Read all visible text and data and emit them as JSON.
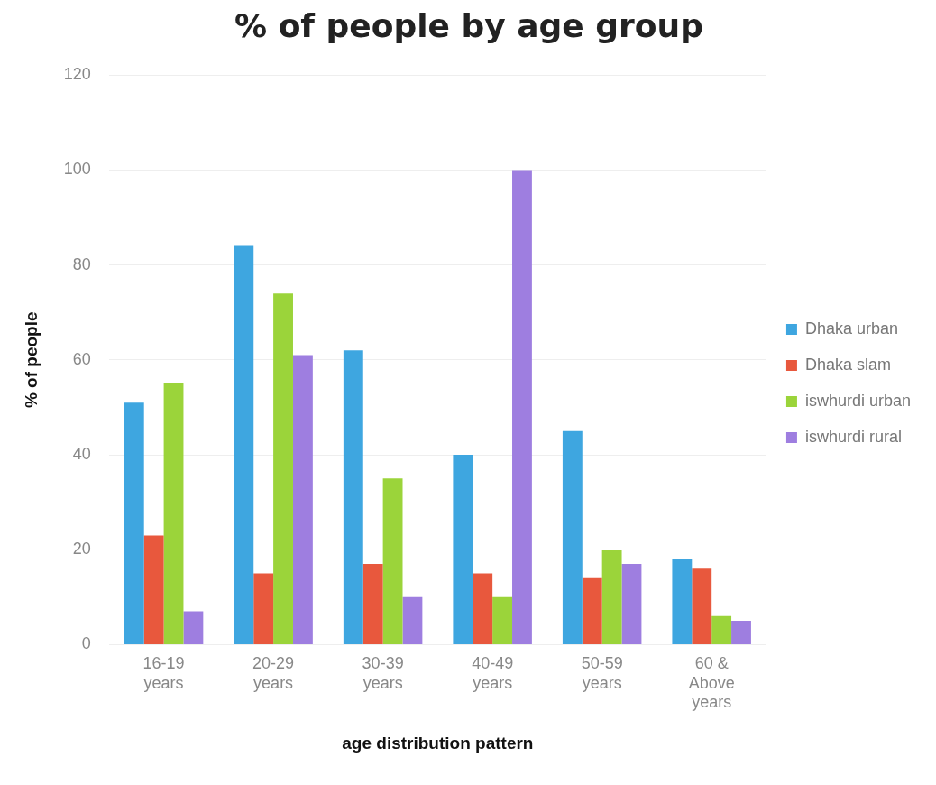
{
  "chart_data": {
    "type": "bar",
    "title": "% of people by age group",
    "xlabel": "age distribution pattern",
    "ylabel": "% of people",
    "categories": [
      "16-19 years",
      "20-29 years",
      "30-39 years",
      "40-49 years",
      "50-59 years",
      "60 & Above years"
    ],
    "series": [
      {
        "name": "Dhaka urban",
        "color": "#3ea6e0",
        "values": [
          51,
          84,
          62,
          40,
          45,
          18
        ]
      },
      {
        "name": "Dhaka slam",
        "color": "#e8583d",
        "values": [
          23,
          15,
          17,
          15,
          14,
          16
        ]
      },
      {
        "name": "iswhurdi urban",
        "color": "#9bd43a",
        "values": [
          55,
          74,
          35,
          10,
          20,
          6
        ]
      },
      {
        "name": "iswhurdi rural",
        "color": "#9e7ee0",
        "values": [
          7,
          61,
          10,
          100,
          17,
          5
        ]
      }
    ],
    "ylim": [
      0,
      120
    ],
    "yticks": [
      0,
      20,
      40,
      60,
      80,
      100,
      120
    ],
    "grid": "y",
    "legend": "right"
  }
}
